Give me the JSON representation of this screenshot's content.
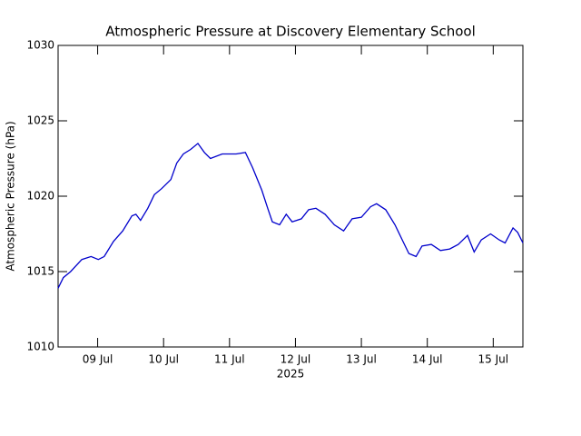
{
  "chart_data": {
    "type": "line",
    "title": "Atmospheric Pressure at Discovery Elementary School",
    "x_label": "2025",
    "y_label": "Atmospheric Pressure (hPa)",
    "xlim": [
      8.4,
      15.45
    ],
    "xticks": [
      {
        "value": 9,
        "label": "09 Jul"
      },
      {
        "value": 10,
        "label": "10 Jul"
      },
      {
        "value": 11,
        "label": "11 Jul"
      },
      {
        "value": 12,
        "label": "12 Jul"
      },
      {
        "value": 13,
        "label": "13 Jul"
      },
      {
        "value": 14,
        "label": "14 Jul"
      },
      {
        "value": 15,
        "label": "15 Jul"
      }
    ],
    "ylim": [
      1010,
      1030
    ],
    "yticks": [
      1010,
      1015,
      1020,
      1025,
      1030
    ],
    "x": [
      8.4,
      8.48,
      8.59,
      8.76,
      8.9,
      9.01,
      9.1,
      9.24,
      9.38,
      9.52,
      9.58,
      9.65,
      9.76,
      9.86,
      9.97,
      10.11,
      10.2,
      10.3,
      10.41,
      10.52,
      10.62,
      10.71,
      10.89,
      11.1,
      11.24,
      11.35,
      11.49,
      11.58,
      11.65,
      11.76,
      11.86,
      11.95,
      12.09,
      12.2,
      12.31,
      12.45,
      12.59,
      12.73,
      12.86,
      13.0,
      13.14,
      13.23,
      13.37,
      13.51,
      13.62,
      13.72,
      13.83,
      13.92,
      14.06,
      14.2,
      14.34,
      14.47,
      14.61,
      14.71,
      14.82,
      14.96,
      15.09,
      15.18,
      15.3,
      15.37,
      15.45
    ],
    "series": [
      {
        "color": "#0000cc",
        "values": [
          1013.9,
          1014.6,
          1015.0,
          1015.8,
          1016.0,
          1015.8,
          1016.0,
          1017.0,
          1017.7,
          1018.7,
          1018.8,
          1018.4,
          1019.2,
          1020.1,
          1020.5,
          1021.1,
          1022.2,
          1022.8,
          1023.1,
          1023.5,
          1022.9,
          1022.5,
          1022.8,
          1022.8,
          1022.9,
          1021.9,
          1020.4,
          1019.2,
          1018.3,
          1018.1,
          1018.8,
          1018.3,
          1018.5,
          1019.1,
          1019.2,
          1018.8,
          1018.1,
          1017.7,
          1018.5,
          1018.6,
          1019.3,
          1019.5,
          1019.1,
          1018.1,
          1017.1,
          1016.2,
          1016.0,
          1016.7,
          1016.8,
          1016.4,
          1016.5,
          1016.8,
          1017.4,
          1016.3,
          1017.1,
          1017.5,
          1017.1,
          1016.9,
          1017.9,
          1017.6,
          1016.9
        ]
      }
    ]
  }
}
